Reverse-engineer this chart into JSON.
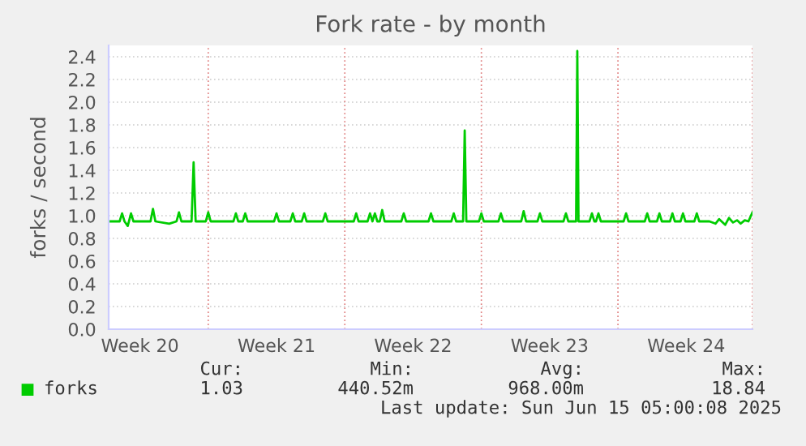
{
  "chart_data": {
    "type": "line",
    "title": "Fork rate - by month",
    "ylabel": "forks / second",
    "x": [
      "2025-05-13T05:00",
      "2025-05-13T18:30",
      "2025-05-13T21:30",
      "2025-05-14T00:30",
      "2025-05-14T04:30",
      "2025-05-14T08:30",
      "2025-05-14T11:30",
      "2025-05-15T08:30",
      "2025-05-15T11:30",
      "2025-05-15T14:30",
      "2025-05-16T07:30",
      "2025-05-16T16:30",
      "2025-05-16T19:30",
      "2025-05-16T22:30",
      "2025-05-17T11:00",
      "2025-05-17T13:30",
      "2025-05-17T16:00",
      "2025-05-18T04:30",
      "2025-05-18T07:30",
      "2025-05-18T10:30",
      "2025-05-19T14:30",
      "2025-05-19T17:30",
      "2025-05-19T20:30",
      "2025-05-20T02:00",
      "2025-05-20T05:00",
      "2025-05-20T08:00",
      "2025-05-21T16:30",
      "2025-05-21T19:30",
      "2025-05-21T22:30",
      "2025-05-22T12:30",
      "2025-05-22T15:30",
      "2025-05-22T18:30",
      "2025-05-23T02:30",
      "2025-05-23T05:30",
      "2025-05-23T08:30",
      "2025-05-24T04:30",
      "2025-05-24T07:30",
      "2025-05-24T10:30",
      "2025-05-25T18:30",
      "2025-05-25T21:30",
      "2025-05-26T00:30",
      "2025-05-26T11:30",
      "2025-05-26T14:30",
      "2025-05-26T17:30",
      "2025-05-26T20:30",
      "2025-05-26T23:30",
      "2025-05-27T02:30",
      "2025-05-27T05:30",
      "2025-05-27T08:30",
      "2025-05-28T05:00",
      "2025-05-28T08:00",
      "2025-05-28T11:00",
      "2025-05-29T14:30",
      "2025-05-29T17:30",
      "2025-05-29T20:30",
      "2025-05-30T18:30",
      "2025-05-30T21:30",
      "2025-05-31T00:30",
      "2025-05-31T09:00",
      "2025-05-31T11:00",
      "2025-05-31T13:00",
      "2025-06-01T04:30",
      "2025-06-01T07:30",
      "2025-06-01T10:30",
      "2025-06-02T04:30",
      "2025-06-02T07:30",
      "2025-06-02T10:30",
      "2025-06-03T08:30",
      "2025-06-03T11:30",
      "2025-06-03T14:30",
      "2025-06-04T04:30",
      "2025-06-04T07:30",
      "2025-06-04T10:30",
      "2025-06-05T12:30",
      "2025-06-05T15:30",
      "2025-06-05T18:30",
      "2025-06-06T04:00",
      "2025-06-06T05:30",
      "2025-06-06T07:00",
      "2025-06-06T20:30",
      "2025-06-06T23:30",
      "2025-06-07T02:30",
      "2025-06-07T04:30",
      "2025-06-07T07:30",
      "2025-06-07T10:30",
      "2025-06-08T14:30",
      "2025-06-08T17:30",
      "2025-06-08T20:30",
      "2025-06-09T16:30",
      "2025-06-09T19:30",
      "2025-06-09T22:30",
      "2025-06-10T07:30",
      "2025-06-10T10:30",
      "2025-06-10T13:30",
      "2025-06-10T23:30",
      "2025-06-11T02:30",
      "2025-06-11T05:30",
      "2025-06-11T12:30",
      "2025-06-11T15:30",
      "2025-06-11T18:30",
      "2025-06-12T05:30",
      "2025-06-12T08:30",
      "2025-06-12T11:30",
      "2025-06-13T00:00",
      "2025-06-13T07:30",
      "2025-06-13T12:00",
      "2025-06-13T19:30",
      "2025-06-14T00:00",
      "2025-06-14T05:00",
      "2025-06-14T10:00",
      "2025-06-14T14:30",
      "2025-06-14T19:30",
      "2025-06-15T00:00",
      "2025-06-15T05:00"
    ],
    "xlim": [
      "2025-05-13T05:00",
      "2025-06-15T05:00"
    ],
    "xticks": [
      {
        "value": "2025-05-14T19:30",
        "label": "Week 20"
      },
      {
        "value": "2025-05-18T07:30",
        "label": null
      },
      {
        "value": "2025-05-21T19:30",
        "label": "Week 21"
      },
      {
        "value": "2025-05-25T07:30",
        "label": null
      },
      {
        "value": "2025-05-28T19:30",
        "label": "Week 22"
      },
      {
        "value": "2025-06-01T07:30",
        "label": null
      },
      {
        "value": "2025-06-04T19:30",
        "label": "Week 23"
      },
      {
        "value": "2025-06-08T07:30",
        "label": null
      },
      {
        "value": "2025-06-11T19:30",
        "label": "Week 24"
      },
      {
        "value": "2025-06-15T05:00",
        "label": null
      }
    ],
    "ylim": [
      0,
      2.5
    ],
    "yticks": [
      {
        "value": 0,
        "label": "0.0"
      },
      0.2,
      0.4,
      0.6,
      0.8,
      {
        "value": 1,
        "label": "1.0"
      },
      1.2,
      1.4,
      1.6,
      1.8,
      {
        "value": 2,
        "label": "2.0"
      },
      2.2,
      2.4
    ],
    "grid": true,
    "legend": "bottom left",
    "series": [
      {
        "name": "forks",
        "color": "#00cc00",
        "values": [
          0.95,
          0.95,
          1.02,
          0.95,
          0.91,
          1.02,
          0.95,
          0.95,
          1.06,
          0.95,
          0.93,
          0.95,
          1.03,
          0.95,
          0.95,
          1.47,
          0.95,
          0.95,
          1.03,
          0.95,
          0.95,
          1.02,
          0.95,
          0.95,
          1.02,
          0.95,
          0.95,
          1.02,
          0.95,
          0.95,
          1.02,
          0.95,
          0.95,
          1.02,
          0.95,
          0.95,
          1.02,
          0.95,
          0.95,
          1.02,
          0.95,
          0.95,
          1.02,
          0.95,
          1.02,
          0.95,
          0.95,
          1.05,
          0.95,
          0.95,
          1.02,
          0.95,
          0.95,
          1.02,
          0.95,
          0.95,
          1.02,
          0.95,
          0.95,
          1.75,
          0.95,
          0.95,
          1.02,
          0.95,
          0.95,
          1.02,
          0.95,
          0.95,
          1.04,
          0.95,
          0.95,
          1.02,
          0.95,
          0.95,
          1.02,
          0.95,
          0.95,
          2.45,
          0.95,
          0.95,
          1.02,
          0.95,
          0.95,
          1.02,
          0.95,
          0.95,
          1.02,
          0.95,
          0.95,
          1.02,
          0.95,
          0.95,
          1.02,
          0.95,
          0.95,
          1.02,
          0.95,
          0.95,
          1.02,
          0.95,
          0.95,
          1.02,
          0.95,
          0.95,
          0.93,
          0.97,
          0.92,
          0.98,
          0.94,
          0.96,
          0.93,
          0.96,
          0.95,
          1.03
        ]
      }
    ],
    "annotations": [
      "Cur:",
      "Min:",
      "Avg:",
      "Max:",
      "1.03",
      "440.52m",
      "968.00m",
      "18.84",
      "Last update: Sun Jun 15 05:00:08 2025"
    ]
  }
}
